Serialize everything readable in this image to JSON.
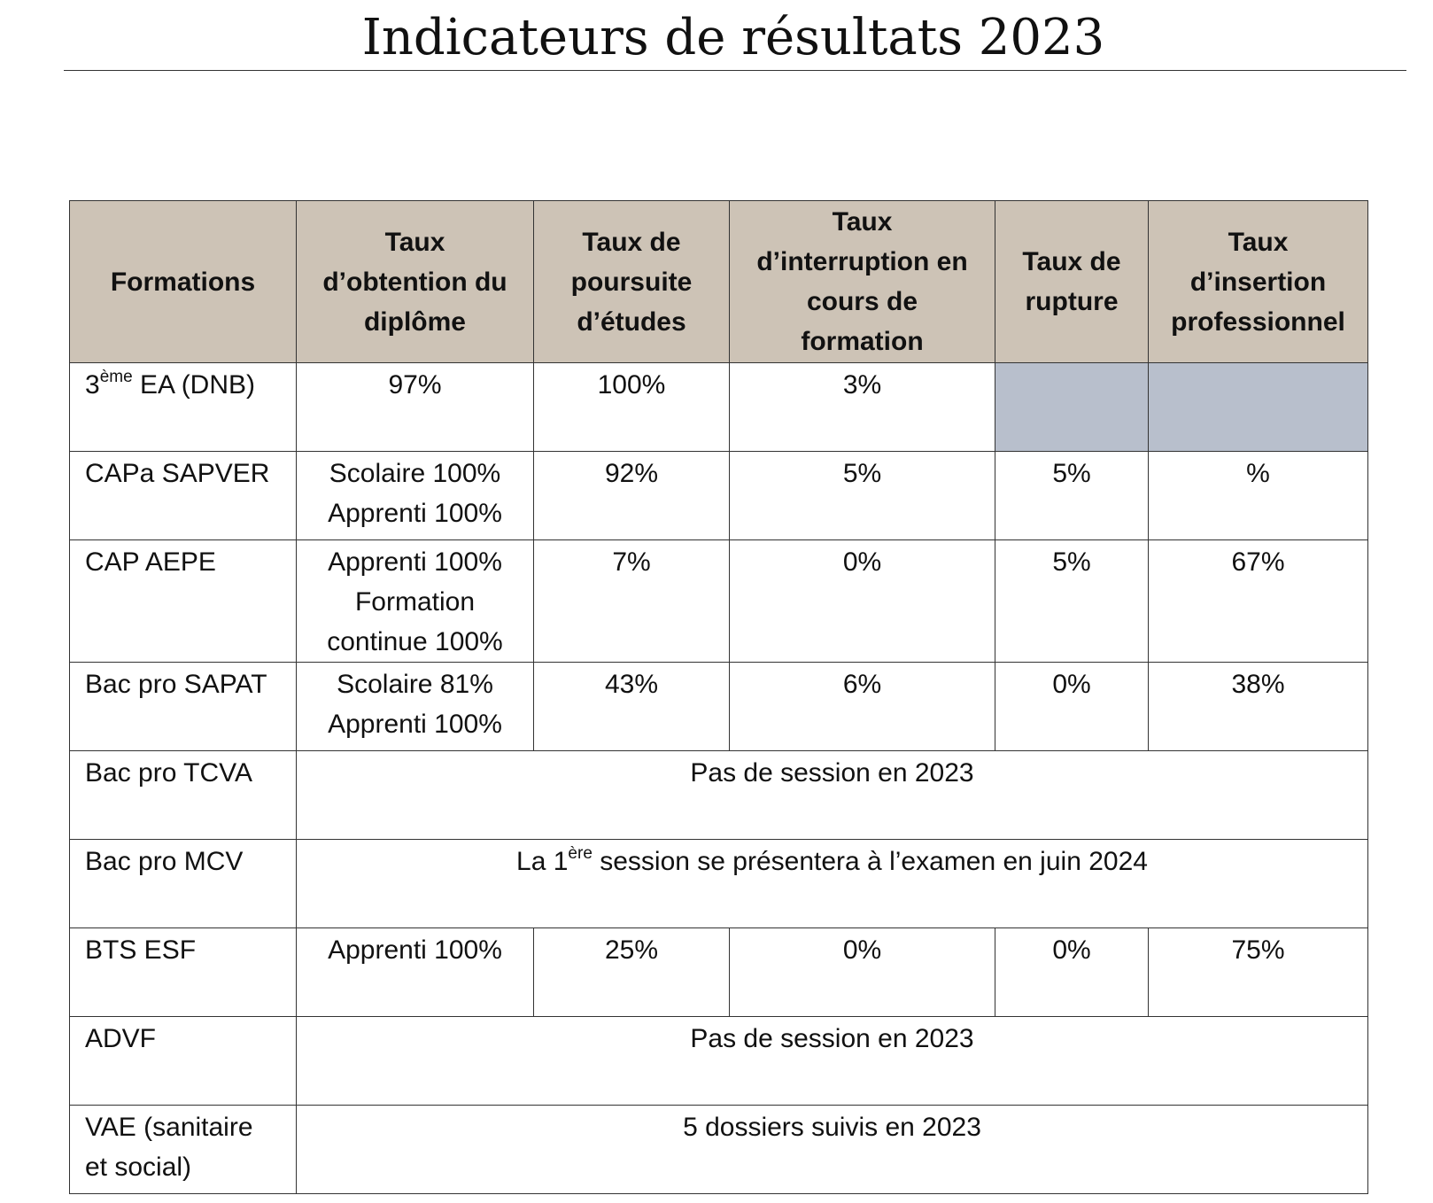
{
  "title": "Indicateurs de résultats 2023",
  "table": {
    "headers": [
      [
        "Formations"
      ],
      [
        "Taux",
        "d’obtention du",
        "diplôme"
      ],
      [
        "Taux de",
        "poursuite",
        "d’études"
      ],
      [
        "Taux",
        "d’interruption en",
        "cours de",
        "formation"
      ],
      [
        "Taux de",
        "rupture"
      ],
      [
        "Taux",
        "d’insertion",
        "professionnel"
      ]
    ],
    "rows": [
      {
        "formation_base": "3",
        "formation_sup": "ème",
        "formation_rest": " EA (DNB)",
        "obtention": [
          "97%"
        ],
        "poursuite": "100%",
        "interruption": "3%",
        "rupture": "",
        "insertion": ""
      },
      {
        "formation": "CAPa SAPVER",
        "obtention": [
          "Scolaire 100%",
          "Apprenti 100%"
        ],
        "poursuite": "92%",
        "interruption": "5%",
        "rupture": "5%",
        "insertion": "%"
      },
      {
        "formation": "CAP AEPE",
        "obtention": [
          "Apprenti 100%",
          "Formation",
          "continue 100%"
        ],
        "poursuite": "7%",
        "interruption": "0%",
        "rupture": "5%",
        "insertion": "67%"
      },
      {
        "formation": "Bac pro SAPAT",
        "obtention": [
          "Scolaire 81%",
          "Apprenti 100%"
        ],
        "poursuite": "43%",
        "interruption": "6%",
        "rupture": "0%",
        "insertion": "38%"
      },
      {
        "formation": "Bac pro TCVA",
        "merged": "Pas de session en 2023"
      },
      {
        "formation": "Bac pro MCV",
        "merged_base": "La 1",
        "merged_sup": "ère",
        "merged_rest": " session se présentera à l’examen en juin 2024"
      },
      {
        "formation": "BTS ESF",
        "obtention": [
          "Apprenti 100%"
        ],
        "poursuite": "25%",
        "interruption": "0%",
        "rupture": "0%",
        "insertion": "75%"
      },
      {
        "formation": "ADVF",
        "merged": "Pas de session en 2023"
      },
      {
        "formation_lines": [
          "VAE (sanitaire",
          "et social)"
        ],
        "merged": "5 dossiers suivis en 2023"
      }
    ]
  },
  "colors": {
    "header_bg": "#cdc3b6",
    "shaded_cell": "#b8bfcc"
  }
}
